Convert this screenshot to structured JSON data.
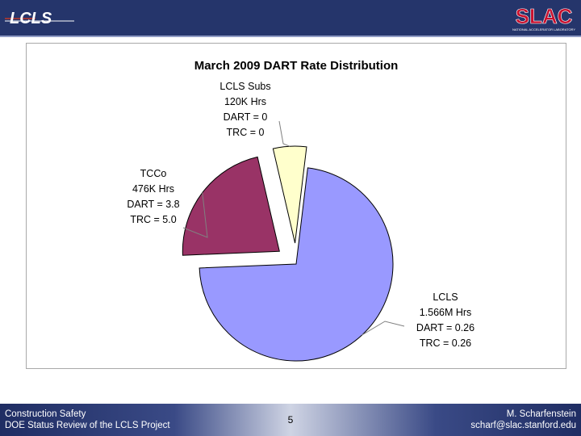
{
  "header": {
    "logo_left_text": "LCLS",
    "logo_right_text": "SLAC",
    "logo_right_subtext": "NATIONAL ACCELERATOR LABORATORY"
  },
  "chart_data": {
    "type": "pie",
    "title": "March 2009 DART Rate Distribution",
    "slices": [
      {
        "label": "LCLS",
        "value": 1566,
        "lines": [
          "LCLS",
          "1.566M Hrs",
          "DART = 0.26",
          "TRC = 0.26"
        ],
        "color": "#9999ff",
        "exploded": false
      },
      {
        "label": "TCCo",
        "value": 476,
        "lines": [
          "TCCo",
          "476K Hrs",
          "DART = 3.8",
          "TRC = 5.0"
        ],
        "color": "#993366",
        "exploded": true
      },
      {
        "label": "LCLS Subs",
        "value": 120,
        "lines": [
          "LCLS Subs",
          "120K Hrs",
          "DART = 0",
          "TRC = 0"
        ],
        "color": "#ffffcc",
        "exploded": true
      }
    ]
  },
  "footer": {
    "left_line1": "Construction Safety",
    "left_line2": "DOE Status Review of the LCLS Project",
    "page_number": "5",
    "right_line1": "M. Scharfenstein",
    "right_line2": "scharf@slac.stanford.edu"
  }
}
